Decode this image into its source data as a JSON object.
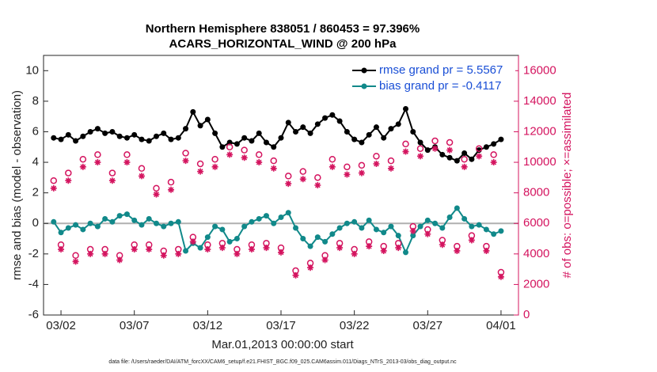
{
  "chart_data": {
    "type": "line",
    "title": "Northern Hemisphere 838051 / 860453 = 97.396%",
    "subtitle": "ACARS_HORIZONTAL_WIND @ 200 hPa",
    "x_label": "Mar.01,2013 00:00:00 start",
    "y_label": "rmse and bias (model - observation)",
    "y2_label": "# of obs: o=possible; ×=assimilated",
    "footnote": "data file: /Users/raeder/DAI/ATM_forcXX/CAM6_setup/f.e21.FHIST_BGC.f09_025.CAM6assim.011/Diags_NTrS_2013-03/obs_diag_output.nc",
    "legend": "upper right",
    "xlim": [
      -0.19,
      32.19
    ],
    "xticks": [
      {
        "value": 1,
        "label": "03/02"
      },
      {
        "value": 6,
        "label": "03/07"
      },
      {
        "value": 11,
        "label": "03/12"
      },
      {
        "value": 16,
        "label": "03/17"
      },
      {
        "value": 21,
        "label": "03/22"
      },
      {
        "value": 26,
        "label": "03/27"
      },
      {
        "value": 31,
        "label": "04/01"
      }
    ],
    "ylim": [
      -6,
      11
    ],
    "yticks": [
      -6,
      -4,
      -2,
      0,
      2,
      4,
      6,
      8,
      10
    ],
    "y2lim": [
      0,
      17000
    ],
    "y2ticks": [
      0,
      2000,
      4000,
      6000,
      8000,
      10000,
      12000,
      14000,
      16000
    ],
    "x": [
      0.5,
      1,
      1.5,
      2,
      2.5,
      3,
      3.5,
      4,
      4.5,
      5,
      5.5,
      6,
      6.5,
      7,
      7.5,
      8,
      8.5,
      9,
      9.5,
      10,
      10.5,
      11,
      11.5,
      12,
      12.5,
      13,
      13.5,
      14,
      14.5,
      15,
      15.5,
      16,
      16.5,
      17,
      17.5,
      18,
      18.5,
      19,
      19.5,
      20,
      20.5,
      21,
      21.5,
      22,
      22.5,
      23,
      23.5,
      24,
      24.5,
      25,
      25.5,
      26,
      26.5,
      27,
      27.5,
      28,
      28.5,
      29,
      29.5,
      30,
      30.5,
      31
    ],
    "series": [
      {
        "name": "rmse grand pr = 5.5567",
        "color": "#000000",
        "marker": "dot",
        "values": [
          5.6,
          5.5,
          5.8,
          5.4,
          5.7,
          6.0,
          6.2,
          5.9,
          6.0,
          5.7,
          5.6,
          5.8,
          5.5,
          5.4,
          5.7,
          5.9,
          5.5,
          5.6,
          6.2,
          7.3,
          6.4,
          6.8,
          5.9,
          5.0,
          5.3,
          5.2,
          5.6,
          5.4,
          5.9,
          5.3,
          5.0,
          5.6,
          6.6,
          6.0,
          6.3,
          5.9,
          6.5,
          6.9,
          7.1,
          6.7,
          6.0,
          5.5,
          5.3,
          5.8,
          6.3,
          5.6,
          6.2,
          6.5,
          7.5,
          6.0,
          5.3,
          4.8,
          5.0,
          4.5,
          4.3,
          4.1,
          4.6,
          4.2,
          4.8,
          5.0,
          5.2,
          5.5
        ]
      },
      {
        "name": "bias grand pr = -0.4117",
        "color": "#11898a",
        "marker": "dot",
        "values": [
          0.1,
          -0.6,
          -0.3,
          -0.1,
          -0.4,
          0.0,
          -0.2,
          0.3,
          0.1,
          0.5,
          0.6,
          0.2,
          -0.1,
          0.3,
          0.0,
          -0.2,
          0.0,
          0.1,
          -1.8,
          -1.3,
          -1.6,
          -0.9,
          -0.2,
          -0.4,
          -1.2,
          -1.0,
          -0.2,
          0.1,
          0.3,
          0.5,
          0.0,
          0.4,
          0.7,
          -0.3,
          -1.0,
          -1.5,
          -0.9,
          -1.2,
          -0.7,
          -0.3,
          0.0,
          0.1,
          -0.3,
          0.2,
          -0.4,
          -0.6,
          -0.2,
          -0.8,
          -1.9,
          -0.8,
          -0.2,
          0.2,
          0.0,
          -0.3,
          0.4,
          1.0,
          0.3,
          -0.2,
          -0.1,
          -0.4,
          -0.7,
          -0.5
        ]
      },
      {
        "color": "#d4145f",
        "marker": "circle",
        "axis": "y2",
        "values": [
          8800,
          4600,
          9300,
          3900,
          10200,
          4300,
          10500,
          4300,
          9300,
          3900,
          10500,
          4600,
          9600,
          4600,
          8300,
          4200,
          8700,
          4300,
          10600,
          5100,
          9900,
          4600,
          10200,
          4700,
          11000,
          4300,
          10800,
          4600,
          10500,
          4700,
          10100,
          4400,
          9100,
          2900,
          9400,
          3400,
          9000,
          3900,
          10200,
          4700,
          9700,
          4300,
          9800,
          4800,
          10400,
          4500,
          10100,
          4700,
          11200,
          5800,
          10900,
          5600,
          11400,
          4900,
          11300,
          4500,
          10200,
          5200,
          10900,
          4500,
          10500,
          2800
        ]
      },
      {
        "color": "#d4145f",
        "marker": "star",
        "axis": "y2",
        "values": [
          8300,
          4300,
          8800,
          3500,
          9700,
          4000,
          10000,
          4000,
          8800,
          3600,
          10000,
          4300,
          9100,
          4300,
          7900,
          3900,
          8200,
          4000,
          10100,
          4800,
          9400,
          4300,
          9700,
          4400,
          10500,
          4000,
          10300,
          4300,
          10000,
          4400,
          9600,
          4100,
          8600,
          2600,
          8900,
          3100,
          8500,
          3600,
          9700,
          4400,
          9200,
          4000,
          9300,
          4500,
          9900,
          4200,
          9600,
          4400,
          10700,
          5500,
          10400,
          5300,
          10900,
          4600,
          10800,
          4200,
          9700,
          4900,
          10400,
          4200,
          10000,
          2500
        ]
      }
    ]
  }
}
